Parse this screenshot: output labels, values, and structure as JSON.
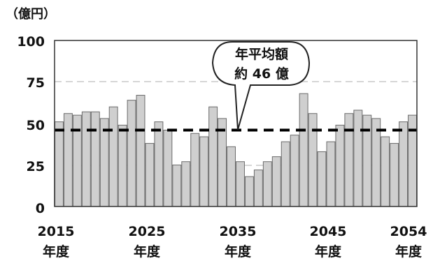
{
  "chart_data": {
    "type": "bar",
    "unit_label": "（億円）",
    "x": [
      2015,
      2016,
      2017,
      2018,
      2019,
      2020,
      2021,
      2022,
      2023,
      2024,
      2025,
      2026,
      2027,
      2028,
      2029,
      2030,
      2031,
      2032,
      2033,
      2034,
      2035,
      2036,
      2037,
      2038,
      2039,
      2040,
      2041,
      2042,
      2043,
      2044,
      2045,
      2046,
      2047,
      2048,
      2049,
      2050,
      2051,
      2052,
      2053,
      2054
    ],
    "values": [
      51,
      56,
      55,
      57,
      57,
      53,
      60,
      49,
      64,
      67,
      38,
      51,
      46,
      25,
      27,
      44,
      42,
      60,
      53,
      36,
      27,
      18,
      22,
      27,
      30,
      39,
      43,
      68,
      56,
      33,
      39,
      49,
      56,
      58,
      55,
      53,
      42,
      38,
      51,
      55
    ],
    "ylim": [
      0,
      100
    ],
    "yticks": [
      "0",
      "25",
      "50",
      "75",
      "100"
    ],
    "xtick_labels": [
      {
        "year": "2015",
        "suffix": "年度"
      },
      {
        "year": "2025",
        "suffix": "年度"
      },
      {
        "year": "2035",
        "suffix": "年度"
      },
      {
        "year": "2045",
        "suffix": "年度"
      },
      {
        "year": "2054",
        "suffix": "年度"
      }
    ],
    "average": 46,
    "annotation": {
      "line1": "年平均額",
      "line2": "約 46 億"
    },
    "grid": "dashed at 25 and 75",
    "colors": {
      "bar_fill": "#cfcfcf",
      "bar_edge": "#6b6b6b",
      "average_line": "#000000",
      "grid": "#c8c8c8"
    }
  }
}
